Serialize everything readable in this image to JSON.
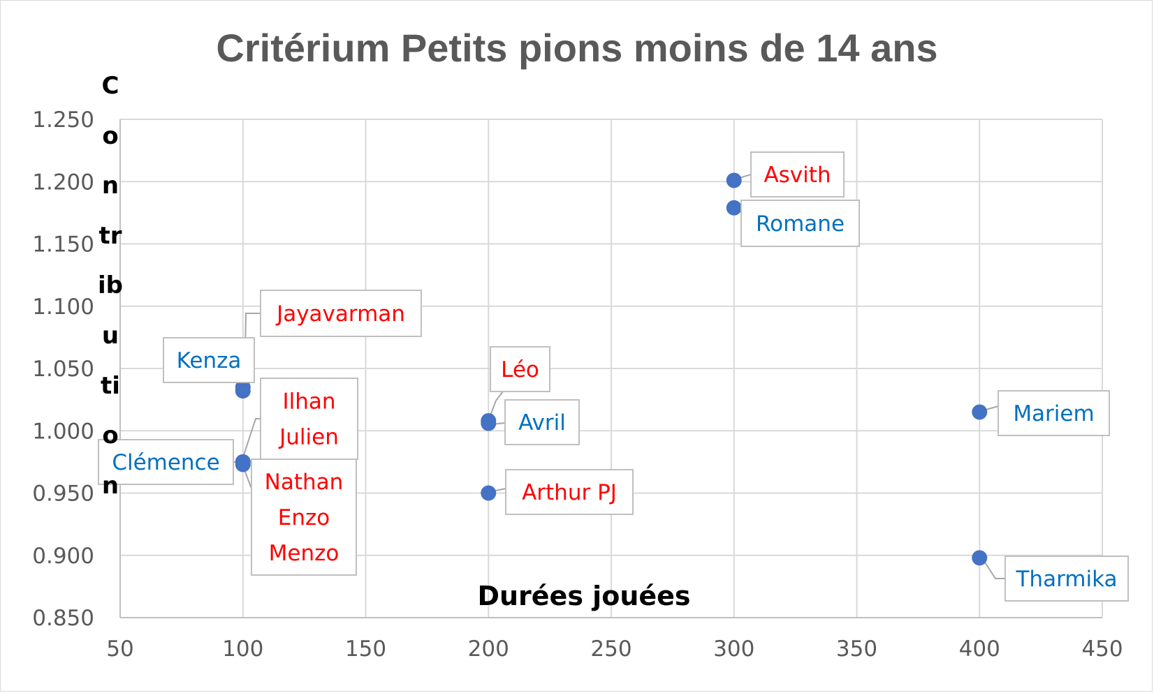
{
  "chart_data": {
    "type": "scatter",
    "title": "Critérium Petits pions moins de 14 ans",
    "xlabel": "Durées jouées",
    "ylabel": "Contribution",
    "xlim": [
      50,
      450
    ],
    "ylim": [
      0.85,
      1.25
    ],
    "x_ticks": [
      "50",
      "100",
      "150",
      "200",
      "250",
      "300",
      "350",
      "400",
      "450"
    ],
    "y_ticks": [
      "0.850",
      "0.900",
      "0.950",
      "1.000",
      "1.050",
      "1.100",
      "1.150",
      "1.200",
      "1.250"
    ],
    "grid": true,
    "marker_color": "#4472C4",
    "label_colors": {
      "red": "#FF0000",
      "blue": "#0070C0"
    },
    "points": [
      {
        "x": 100,
        "y": 1.032,
        "label": "Kenza",
        "color": "blue"
      },
      {
        "x": 100,
        "y": 1.035,
        "label": "Jayavarman",
        "color": "red"
      },
      {
        "x": 100,
        "y": 0.975,
        "label": "Clémence",
        "color": "blue"
      },
      {
        "x": 100,
        "y": 0.975,
        "label": "Ilhan\nJulien",
        "color": "red"
      },
      {
        "x": 100,
        "y": 0.973,
        "label": "Nathan\nEnzo\nMenzo",
        "color": "red"
      },
      {
        "x": 200,
        "y": 1.008,
        "label": "Léo",
        "color": "red"
      },
      {
        "x": 200,
        "y": 1.006,
        "label": "Avril",
        "color": "blue"
      },
      {
        "x": 200,
        "y": 0.95,
        "label": "Arthur PJ",
        "color": "red"
      },
      {
        "x": 300,
        "y": 1.201,
        "label": "Asvith",
        "color": "red"
      },
      {
        "x": 300,
        "y": 1.179,
        "label": "Romane",
        "color": "blue"
      },
      {
        "x": 400,
        "y": 1.015,
        "label": "Mariem",
        "color": "blue"
      },
      {
        "x": 400,
        "y": 0.898,
        "label": "Tharmika",
        "color": "blue"
      }
    ]
  }
}
